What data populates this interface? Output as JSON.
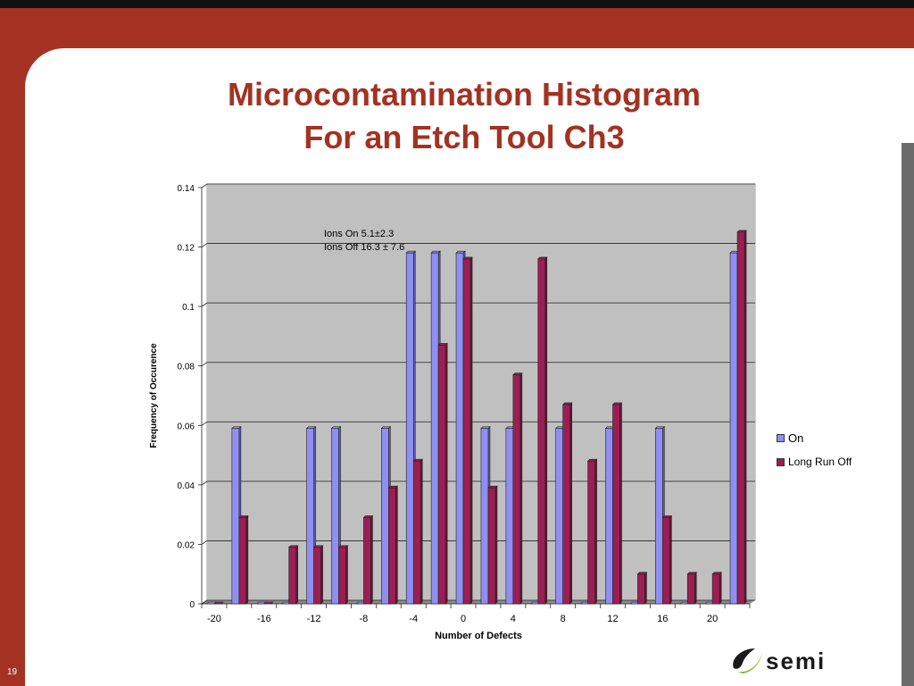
{
  "slide": {
    "title_line1": "Microcontamination Histogram",
    "title_line2": "For an Etch Tool Ch3",
    "page_number": "19",
    "logo_text": "semi",
    "colors": {
      "background": "#a33222",
      "title": "#a33222"
    }
  },
  "chart_data": {
    "type": "bar",
    "title": "",
    "xlabel": "Number of Defects",
    "ylabel": "Frequency of Occurence",
    "categories": [
      "-20",
      "-18",
      "-16",
      "-14",
      "-12",
      "-10",
      "-8",
      "-6",
      "-4",
      "-2",
      "0",
      "2",
      "4",
      "6",
      "8",
      "10",
      "12",
      "14",
      "16",
      "18",
      "20",
      "22"
    ],
    "x_tick_labels": [
      "-20",
      "-16",
      "-12",
      "-8",
      "-4",
      "0",
      "4",
      "8",
      "12",
      "16",
      "20"
    ],
    "y_tick_labels": [
      "0",
      "0.02",
      "0.04",
      "0.06",
      "0.08",
      "0.1",
      "0.12",
      "0.14"
    ],
    "ylim": [
      0,
      0.14
    ],
    "grid": true,
    "legend_position": "right",
    "annotation_lines": [
      "Ions On 5.1±2.3",
      "Ions Off 16.3 ± 7.6"
    ],
    "series": [
      {
        "name": "On",
        "color": "#8f8ff2",
        "values": [
          0,
          0.059,
          0,
          0,
          0.059,
          0.059,
          0,
          0.059,
          0.118,
          0.118,
          0.118,
          0.059,
          0.059,
          0,
          0.059,
          0,
          0.059,
          0,
          0.059,
          0,
          0,
          0.118
        ]
      },
      {
        "name": "Long Run Off",
        "color": "#9b1f52",
        "values": [
          0,
          0.029,
          0,
          0.019,
          0.019,
          0.019,
          0.029,
          0.039,
          0.048,
          0.087,
          0.116,
          0.039,
          0.077,
          0.116,
          0.067,
          0.048,
          0.067,
          0.01,
          0.029,
          0.01,
          0.01,
          0.125
        ]
      }
    ]
  }
}
